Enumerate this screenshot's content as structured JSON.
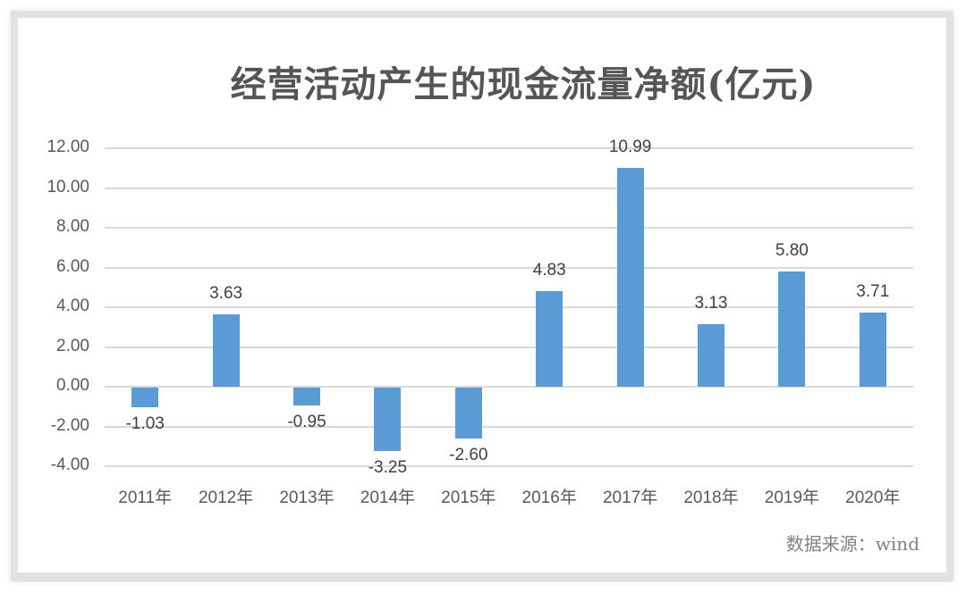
{
  "chart_data": {
    "type": "bar",
    "title": "经营活动产生的现金流量净额(亿元)",
    "xlabel": "",
    "ylabel": "",
    "categories": [
      "2011年",
      "2012年",
      "2013年",
      "2014年",
      "2015年",
      "2016年",
      "2017年",
      "2018年",
      "2019年",
      "2020年"
    ],
    "values": [
      -1.03,
      3.63,
      -0.95,
      -3.25,
      -2.6,
      4.83,
      10.99,
      3.13,
      5.8,
      3.71
    ],
    "value_labels": [
      "-1.03",
      "3.63",
      "-0.95",
      "-3.25",
      "-2.60",
      "4.83",
      "10.99",
      "3.13",
      "5.80",
      "3.71"
    ],
    "ylim": [
      -4,
      12
    ],
    "yticks": [
      "12.00",
      "10.00",
      "8.00",
      "6.00",
      "4.00",
      "2.00",
      "0.00",
      "-2.00",
      "-4.00"
    ],
    "ytick_values": [
      12,
      10,
      8,
      6,
      4,
      2,
      0,
      -2,
      -4
    ],
    "grid": true,
    "legend": null,
    "bar_color": "#5b9bd5",
    "source_note": "数据来源：wind"
  }
}
